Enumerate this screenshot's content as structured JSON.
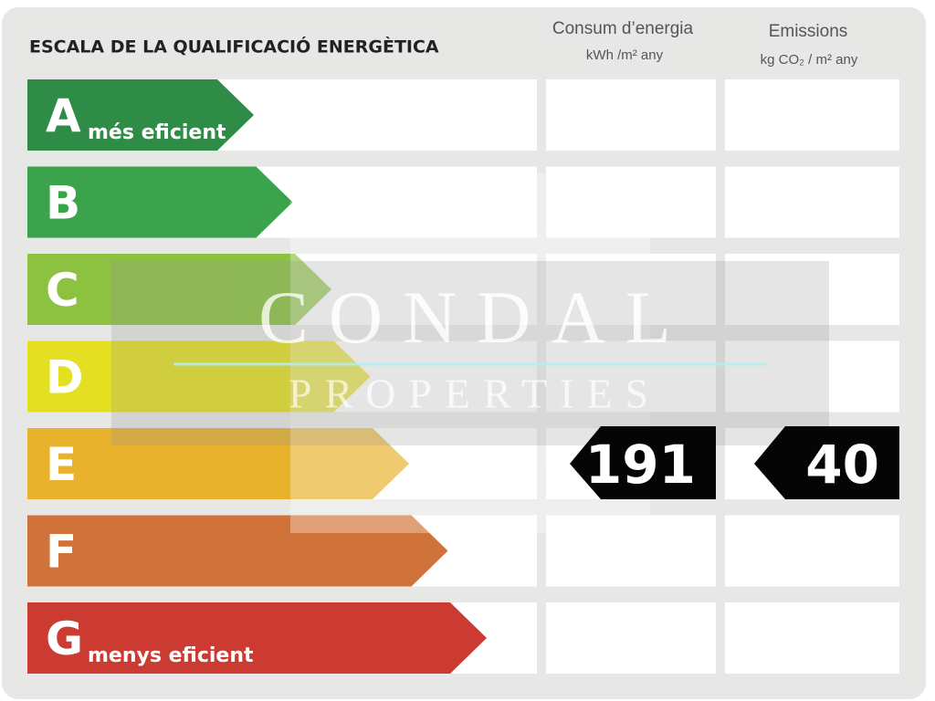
{
  "title": "ESCALA DE LA QUALIFICACIÓ ENERGÈTICA",
  "columns": [
    {
      "title": "Consum d’energia",
      "unit": "kWh /m² any"
    },
    {
      "title": "Emissions",
      "unit": "kg CO₂ / m² any"
    }
  ],
  "ratings": [
    {
      "letter": "A",
      "note": "més eficient",
      "color": "#2f8c46"
    },
    {
      "letter": "B",
      "color": "#3ba34b"
    },
    {
      "letter": "C",
      "color": "#8cc23f"
    },
    {
      "letter": "D",
      "color": "#e4e021"
    },
    {
      "letter": "E",
      "color": "#e8b22c"
    },
    {
      "letter": "F",
      "color": "#d0733a"
    },
    {
      "letter": "G",
      "note": "menys eficient",
      "color": "#cc3b32"
    }
  ],
  "results": [
    {
      "rating": "E",
      "value": "191"
    },
    {
      "rating": "E",
      "value": "40"
    }
  ],
  "watermark": {
    "name": "CONDAL",
    "tagline": "PROPERTIES"
  }
}
